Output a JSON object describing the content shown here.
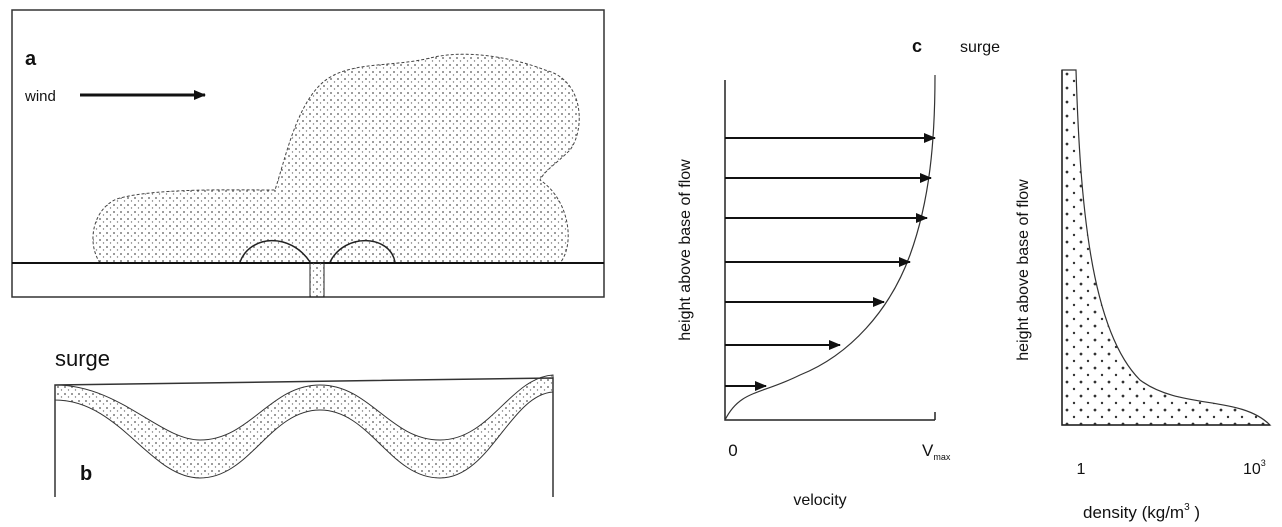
{
  "panel_a": {
    "label": "a",
    "wind_label": "wind"
  },
  "panel_b": {
    "label": "b",
    "title": "surge"
  },
  "panel_c": {
    "label": "c",
    "title": "surge",
    "velocity_plot": {
      "y_label": "height above base of flow",
      "x_label": "velocity",
      "x_tick_start": "0",
      "x_tick_end": {
        "base": "V",
        "sub": "max"
      }
    },
    "density_plot": {
      "y_label": "height above base of flow",
      "x_label": {
        "text": "density (kg/m",
        "sup": "3",
        "close": " )"
      },
      "x_tick_start": "1",
      "x_tick_end": {
        "base": "10",
        "sup": "3"
      }
    }
  }
}
